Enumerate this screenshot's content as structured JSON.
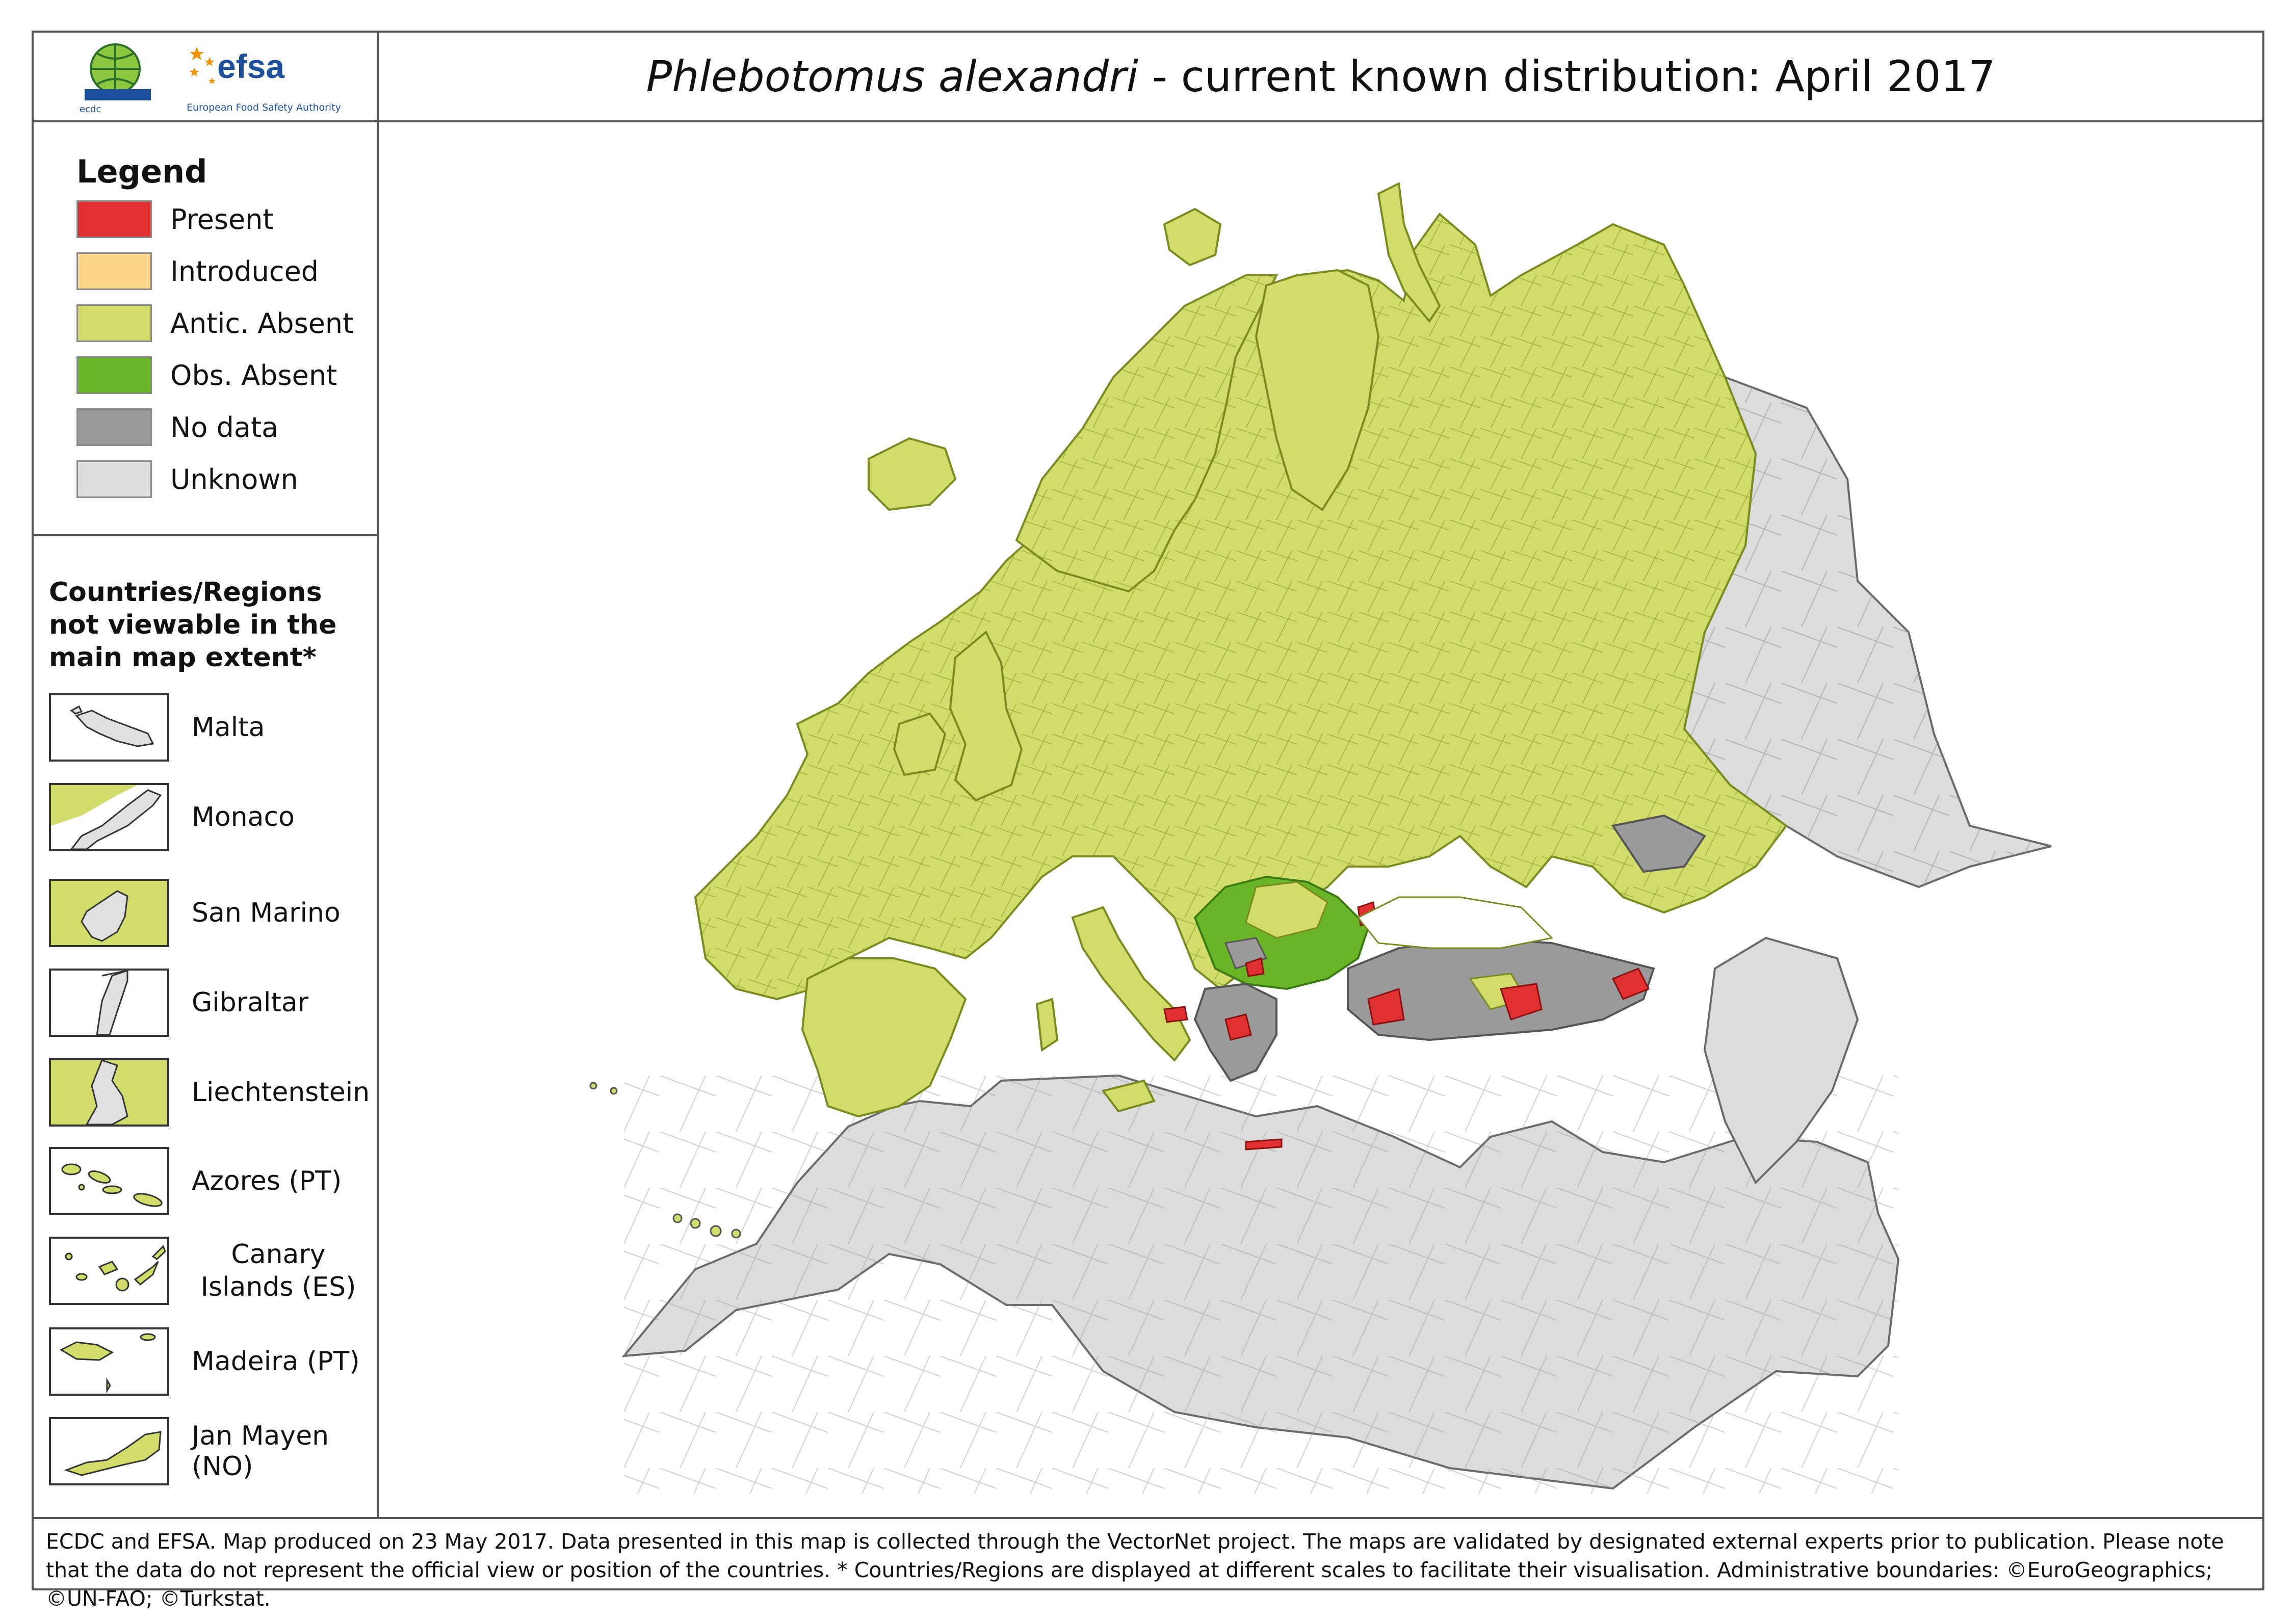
{
  "header": {
    "title_species": "Phlebotomus alexandri",
    "title_rest": " - current known distribution: April 2017",
    "logo_ecdc_text": "ecdc",
    "logo_efsa_text": "efsa",
    "logo_efsa_subtitle": "European Food Safety Authority"
  },
  "legend": {
    "title": "Legend",
    "items": [
      {
        "label": "Present",
        "color": "#e03030"
      },
      {
        "label": "Introduced",
        "color": "#fdd58a"
      },
      {
        "label": "Antic. Absent",
        "color": "#d2dc6a"
      },
      {
        "label": "Obs. Absent",
        "color": "#6ab526"
      },
      {
        "label": "No data",
        "color": "#9a9a9a"
      },
      {
        "label": "Unknown",
        "color": "#dcdcdc"
      }
    ]
  },
  "not_viewable": {
    "title": "Countries/Regions not viewable in the main map extent*",
    "items": [
      {
        "label": "Malta",
        "color": "#e0e0e0"
      },
      {
        "label": "Monaco",
        "color": "#d2dc6a"
      },
      {
        "label": "San Marino",
        "color": "#d2dc6a"
      },
      {
        "label": "Gibraltar",
        "color": "#e0e0e0"
      },
      {
        "label": "Liechtenstein",
        "color": "#d2dc6a"
      },
      {
        "label": "Azores (PT)",
        "color": "#d2dc6a"
      },
      {
        "label": "Canary Islands (ES)",
        "color": "#d2dc6a"
      },
      {
        "label": "Madeira (PT)",
        "color": "#d2dc6a"
      },
      {
        "label": "Jan Mayen (NO)",
        "color": "#d2dc6a"
      }
    ]
  },
  "map_colors": {
    "present": "#e03030",
    "antic_absent": "#d2dc6a",
    "obs_absent": "#6ab526",
    "no_data": "#9a9a9a",
    "unknown": "#dcdcdc",
    "border": "#7a8a20"
  },
  "footer": {
    "text": "ECDC and EFSA. Map produced on 23 May 2017. Data presented in this map is collected through the VectorNet project. The maps are validated by designated external experts prior to publication. Please note that the data do not represent the official view or position of the countries. * Countries/Regions are displayed at different scales to facilitate their visualisation. Administrative boundaries: ©EuroGeographics; ©UN-FAO; ©Turkstat."
  }
}
